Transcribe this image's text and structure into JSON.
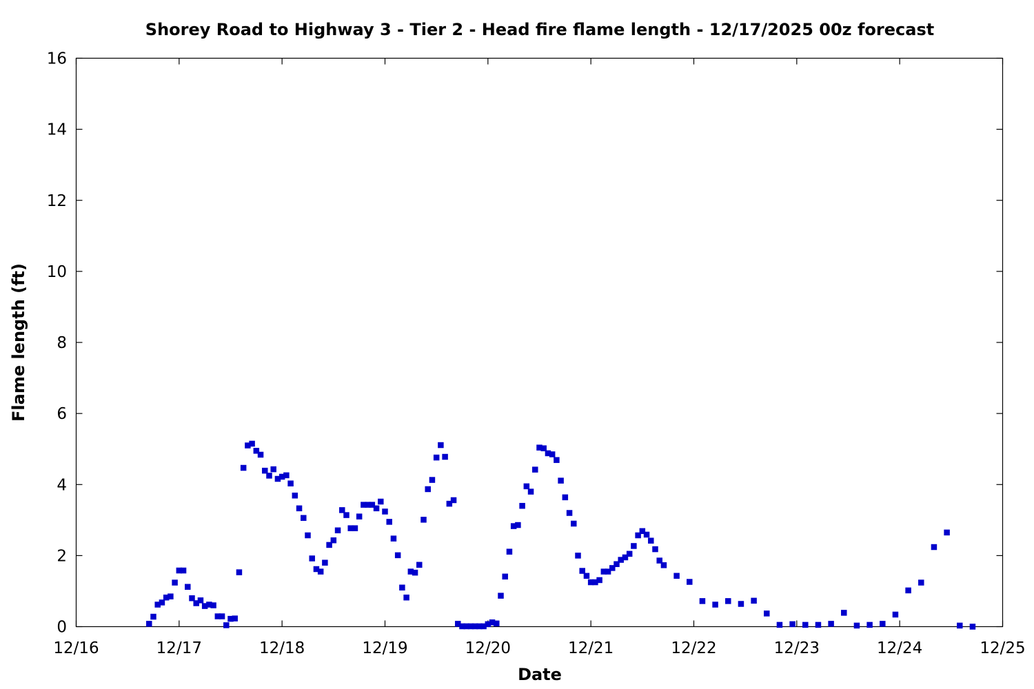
{
  "chart_data": {
    "type": "scatter",
    "title": "Shorey Road to Highway 3 - Tier 2 - Head fire flame length - 12/17/2025 00z forecast",
    "xlabel": "Date",
    "ylabel": "Flame length (ft)",
    "xlim": [
      "12/16",
      "12/25"
    ],
    "ylim": [
      0,
      16
    ],
    "x_ticks": [
      "12/16",
      "12/17",
      "12/18",
      "12/19",
      "12/20",
      "12/21",
      "12/22",
      "12/23",
      "12/24",
      "12/25"
    ],
    "y_ticks": [
      0,
      2,
      4,
      6,
      8,
      10,
      12,
      14,
      16
    ],
    "grid": false,
    "legend": "none",
    "marker_color": "#0000cc",
    "series": [
      {
        "points": [
          [
            "12/16 17:00",
            0.08
          ],
          [
            "12/16 18:00",
            0.28
          ],
          [
            "12/16 19:00",
            0.62
          ],
          [
            "12/16 20:00",
            0.68
          ],
          [
            "12/16 21:00",
            0.82
          ],
          [
            "12/16 22:00",
            0.85
          ],
          [
            "12/16 23:00",
            1.24
          ],
          [
            "12/17 00:00",
            1.58
          ],
          [
            "12/17 01:00",
            1.58
          ],
          [
            "12/17 02:00",
            1.12
          ],
          [
            "12/17 03:00",
            0.8
          ],
          [
            "12/17 04:00",
            0.66
          ],
          [
            "12/17 05:00",
            0.74
          ],
          [
            "12/17 06:00",
            0.58
          ],
          [
            "12/17 07:00",
            0.62
          ],
          [
            "12/17 08:00",
            0.6
          ],
          [
            "12/17 09:00",
            0.29
          ],
          [
            "12/17 10:00",
            0.29
          ],
          [
            "12/17 11:00",
            0.04
          ],
          [
            "12/17 12:00",
            0.22
          ],
          [
            "12/17 13:00",
            0.23
          ],
          [
            "12/17 14:00",
            1.53
          ],
          [
            "12/17 15:00",
            4.47
          ],
          [
            "12/17 16:00",
            5.1
          ],
          [
            "12/17 17:00",
            5.15
          ],
          [
            "12/17 18:00",
            4.95
          ],
          [
            "12/17 19:00",
            4.84
          ],
          [
            "12/17 20:00",
            4.39
          ],
          [
            "12/17 21:00",
            4.25
          ],
          [
            "12/17 22:00",
            4.43
          ],
          [
            "12/17 23:00",
            4.16
          ],
          [
            "12/18 00:00",
            4.22
          ],
          [
            "12/18 01:00",
            4.26
          ],
          [
            "12/18 02:00",
            4.03
          ],
          [
            "12/18 03:00",
            3.69
          ],
          [
            "12/18 04:00",
            3.33
          ],
          [
            "12/18 05:00",
            3.06
          ],
          [
            "12/18 06:00",
            2.57
          ],
          [
            "12/18 07:00",
            1.92
          ],
          [
            "12/18 08:00",
            1.62
          ],
          [
            "12/18 09:00",
            1.55
          ],
          [
            "12/18 10:00",
            1.8
          ],
          [
            "12/18 11:00",
            2.3
          ],
          [
            "12/18 12:00",
            2.43
          ],
          [
            "12/18 13:00",
            2.71
          ],
          [
            "12/18 14:00",
            3.28
          ],
          [
            "12/18 15:00",
            3.14
          ],
          [
            "12/18 16:00",
            2.77
          ],
          [
            "12/18 17:00",
            2.77
          ],
          [
            "12/18 18:00",
            3.1
          ],
          [
            "12/18 19:00",
            3.43
          ],
          [
            "12/18 20:00",
            3.43
          ],
          [
            "12/18 21:00",
            3.43
          ],
          [
            "12/18 22:00",
            3.33
          ],
          [
            "12/18 23:00",
            3.52
          ],
          [
            "12/19 00:00",
            3.24
          ],
          [
            "12/19 01:00",
            2.95
          ],
          [
            "12/19 02:00",
            2.48
          ],
          [
            "12/19 03:00",
            2.01
          ],
          [
            "12/19 04:00",
            1.1
          ],
          [
            "12/19 05:00",
            0.82
          ],
          [
            "12/19 06:00",
            1.55
          ],
          [
            "12/19 07:00",
            1.52
          ],
          [
            "12/19 08:00",
            1.74
          ],
          [
            "12/19 09:00",
            3.01
          ],
          [
            "12/19 10:00",
            3.87
          ],
          [
            "12/19 11:00",
            4.13
          ],
          [
            "12/19 12:00",
            4.76
          ],
          [
            "12/19 13:00",
            5.11
          ],
          [
            "12/19 14:00",
            4.78
          ],
          [
            "12/19 15:00",
            3.46
          ],
          [
            "12/19 16:00",
            3.56
          ],
          [
            "12/19 17:00",
            0.08
          ],
          [
            "12/19 18:00",
            0.01
          ],
          [
            "12/19 19:00",
            0.01
          ],
          [
            "12/19 20:00",
            0.01
          ],
          [
            "12/19 21:00",
            0.01
          ],
          [
            "12/19 22:00",
            0.01
          ],
          [
            "12/19 23:00",
            0.01
          ],
          [
            "12/20 00:00",
            0.07
          ],
          [
            "12/20 01:00",
            0.12
          ],
          [
            "12/20 02:00",
            0.09
          ],
          [
            "12/20 03:00",
            0.87
          ],
          [
            "12/20 04:00",
            1.41
          ],
          [
            "12/20 05:00",
            2.11
          ],
          [
            "12/20 06:00",
            2.83
          ],
          [
            "12/20 07:00",
            2.86
          ],
          [
            "12/20 08:00",
            3.4
          ],
          [
            "12/20 09:00",
            3.95
          ],
          [
            "12/20 10:00",
            3.8
          ],
          [
            "12/20 11:00",
            4.42
          ],
          [
            "12/20 12:00",
            5.04
          ],
          [
            "12/20 13:00",
            5.02
          ],
          [
            "12/20 14:00",
            4.88
          ],
          [
            "12/20 15:00",
            4.85
          ],
          [
            "12/20 16:00",
            4.69
          ],
          [
            "12/20 17:00",
            4.11
          ],
          [
            "12/20 18:00",
            3.64
          ],
          [
            "12/20 19:00",
            3.2
          ],
          [
            "12/20 20:00",
            2.9
          ],
          [
            "12/20 21:00",
            2.0
          ],
          [
            "12/20 22:00",
            1.57
          ],
          [
            "12/20 23:00",
            1.43
          ],
          [
            "12/21 00:00",
            1.25
          ],
          [
            "12/21 01:00",
            1.25
          ],
          [
            "12/21 02:00",
            1.31
          ],
          [
            "12/21 03:00",
            1.55
          ],
          [
            "12/21 04:00",
            1.55
          ],
          [
            "12/21 05:00",
            1.65
          ],
          [
            "12/21 06:00",
            1.76
          ],
          [
            "12/21 07:00",
            1.88
          ],
          [
            "12/21 08:00",
            1.95
          ],
          [
            "12/21 09:00",
            2.05
          ],
          [
            "12/21 10:00",
            2.27
          ],
          [
            "12/21 11:00",
            2.57
          ],
          [
            "12/21 12:00",
            2.69
          ],
          [
            "12/21 13:00",
            2.59
          ],
          [
            "12/21 14:00",
            2.42
          ],
          [
            "12/21 15:00",
            2.18
          ],
          [
            "12/21 16:00",
            1.86
          ],
          [
            "12/21 17:00",
            1.73
          ],
          [
            "12/21 20:00",
            1.43
          ],
          [
            "12/21 23:00",
            1.26
          ],
          [
            "12/22 02:00",
            0.72
          ],
          [
            "12/22 05:00",
            0.62
          ],
          [
            "12/22 08:00",
            0.72
          ],
          [
            "12/22 11:00",
            0.64
          ],
          [
            "12/22 14:00",
            0.73
          ],
          [
            "12/22 17:00",
            0.37
          ],
          [
            "12/22 20:00",
            0.05
          ],
          [
            "12/22 23:00",
            0.07
          ],
          [
            "12/23 02:00",
            0.05
          ],
          [
            "12/23 05:00",
            0.05
          ],
          [
            "12/23 08:00",
            0.08
          ],
          [
            "12/23 11:00",
            0.39
          ],
          [
            "12/23 14:00",
            0.03
          ],
          [
            "12/23 17:00",
            0.05
          ],
          [
            "12/23 20:00",
            0.08
          ],
          [
            "12/23 23:00",
            0.34
          ],
          [
            "12/24 02:00",
            1.02
          ],
          [
            "12/24 05:00",
            1.24
          ],
          [
            "12/24 08:00",
            2.24
          ],
          [
            "12/24 11:00",
            2.65
          ],
          [
            "12/24 14:00",
            0.03
          ],
          [
            "12/24 17:00",
            0.0
          ]
        ]
      }
    ]
  }
}
